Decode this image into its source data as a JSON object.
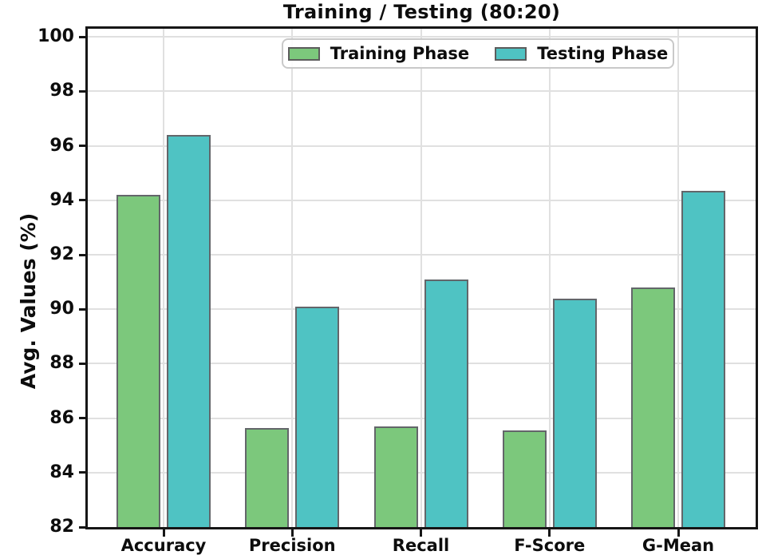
{
  "chart_data": {
    "type": "bar",
    "title": "Training / Testing (80:20)",
    "ylabel": "Avg. Values (%)",
    "xlabel": "",
    "categories": [
      "Accuracy",
      "Precision",
      "Recall",
      "F-Score",
      "G-Mean"
    ],
    "series": [
      {
        "name": "Training Phase",
        "color": "#7CC87C",
        "edge_color": "#63666a",
        "values": [
          94.2,
          85.65,
          85.7,
          85.55,
          90.8
        ]
      },
      {
        "name": "Testing Phase",
        "color": "#4FC3C3",
        "edge_color": "#63666a",
        "values": [
          96.4,
          90.1,
          91.1,
          90.4,
          94.35
        ]
      }
    ],
    "ylim": [
      82,
      100.3
    ],
    "yticks": [
      82,
      84,
      86,
      88,
      90,
      92,
      94,
      96,
      98,
      100
    ],
    "grid": true,
    "grid_color": "#E0E0E0",
    "legend_position": "upper center"
  }
}
